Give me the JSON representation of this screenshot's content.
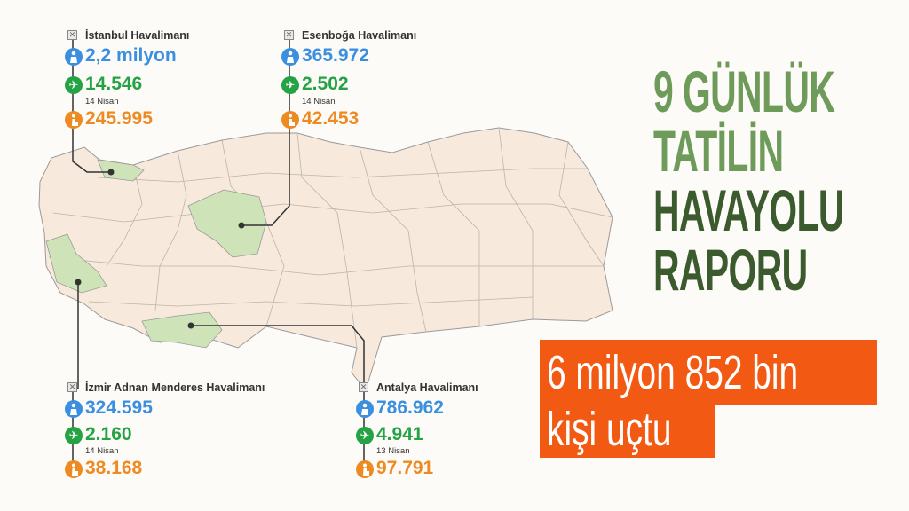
{
  "headline": {
    "line1": "9 GÜNLÜK",
    "line2": "TATİLİN",
    "line3": "HAVAYOLU",
    "line4": "RAPORU"
  },
  "banner": {
    "line1": "6 milyon 852 bin",
    "line2": "kişi uçtu"
  },
  "colors": {
    "passengers": "#3b8fe0",
    "flights": "#25a244",
    "peak": "#ee8a22",
    "highlight_region": "#cfe3b8",
    "map_fill": "#f7e9dc",
    "title_light": "#6e9a5a",
    "title_dark": "#3b5a2e",
    "banner": "#f25a13"
  },
  "airports": [
    {
      "name": "İstanbul Havalimanı",
      "passengers": "2,2 milyon",
      "flights": "14.546",
      "peak_date": "14 Nisan",
      "peak_value": "245.995"
    },
    {
      "name": "Esenboğa Havalimanı",
      "passengers": "365.972",
      "flights": "2.502",
      "peak_date": "14 Nisan",
      "peak_value": "42.453"
    },
    {
      "name": "İzmir Adnan Menderes Havalimanı",
      "passengers": "324.595",
      "flights": "2.160",
      "peak_date": "14 Nisan",
      "peak_value": "38.168"
    },
    {
      "name": "Antalya Havalimanı",
      "passengers": "786.962",
      "flights": "4.941",
      "peak_date": "13 Nisan",
      "peak_value": "97.791"
    }
  ],
  "icons": {
    "terminal": "airport-icon",
    "passengers": "passenger-icon",
    "flights": "plane-icon",
    "peak": "traveler-luggage-icon"
  }
}
